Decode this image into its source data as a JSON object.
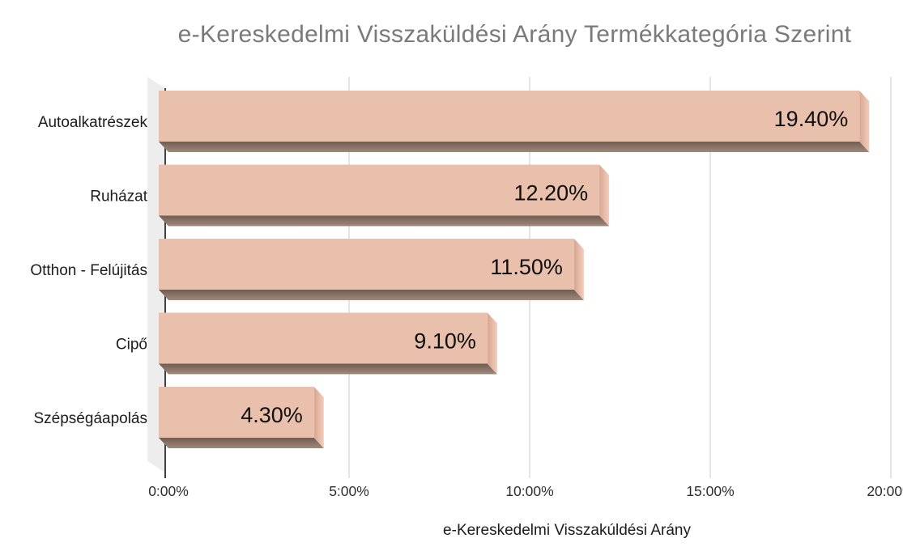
{
  "page": {
    "background": "#ffffff"
  },
  "chart_data": {
    "type": "bar",
    "orientation": "horizontal",
    "style": "3d-extruded",
    "title": "e-Kereskedelmi Visszaküldési Arány Termékkategória Szerint",
    "xlabel": "e-Kereskedelmi Visszakúldési Arány",
    "ylabel": "",
    "categories": [
      "Autoalkatrészek",
      "Ruházat",
      "Otthon - Felújitás",
      "Cipő",
      "Szépségáapolás"
    ],
    "values": [
      19.4,
      12.2,
      11.5,
      9.1,
      4.3
    ],
    "value_labels": [
      "19.40%",
      "12.20%",
      "11.50%",
      "9.10%",
      "4.30%"
    ],
    "x_ticks": [
      {
        "value": 0,
        "label": "0:00%"
      },
      {
        "value": 5,
        "label": "5:00%"
      },
      {
        "value": 10,
        "label": "10:00%"
      },
      {
        "value": 15,
        "label": "15:00%"
      },
      {
        "value": 20,
        "label": "20:00%"
      }
    ],
    "xlim": [
      0,
      20.3
    ],
    "grid": true,
    "legend": false,
    "colors": {
      "bar_front": "#e9c0ac",
      "bar_side_dark": "#d8a692",
      "bar_side_light": "#f3cdbb",
      "bar_bottom_dark": "#6f5d53",
      "bar_bottom_light": "#a1897a",
      "wall": "#ededed",
      "axis_line": "#3f3f3f",
      "gridline": "#d7d7d7",
      "title_text": "#7a7a7a",
      "category_text": "#1c1c1c",
      "value_text": "#0f0f0f",
      "tick_text": "#2e2e2e",
      "background": "#ffffff"
    }
  }
}
